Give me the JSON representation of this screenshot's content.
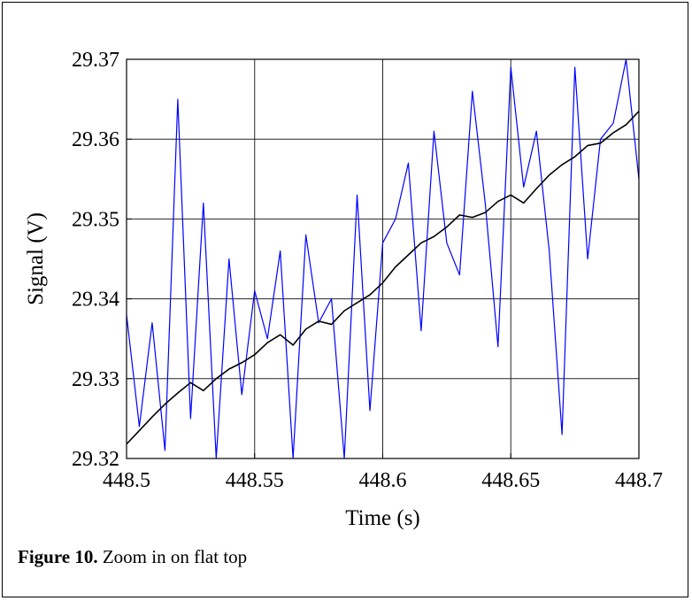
{
  "caption": {
    "label": "Figure 10.",
    "text": " Zoom in on flat top"
  },
  "chart_data": {
    "type": "line",
    "xlabel": "Time (s)",
    "ylabel": "Signal (V)",
    "xlim": [
      448.5,
      448.7
    ],
    "ylim": [
      29.32,
      29.37
    ],
    "grid": true,
    "xticks": [
      448.5,
      448.55,
      448.6,
      448.65,
      448.7
    ],
    "xtick_labels": [
      "448.5",
      "448.55",
      "448.6",
      "448.65",
      "448.7"
    ],
    "yticks": [
      29.32,
      29.33,
      29.34,
      29.35,
      29.36,
      29.37
    ],
    "ytick_labels": [
      "29.32",
      "29.33",
      "29.34",
      "29.35",
      "29.36",
      "29.37"
    ],
    "series": [
      {
        "color": "#0000ff",
        "x": [
          448.5,
          448.505,
          448.51,
          448.515,
          448.52,
          448.525,
          448.53,
          448.535,
          448.54,
          448.545,
          448.55,
          448.555,
          448.56,
          448.565,
          448.57,
          448.575,
          448.58,
          448.585,
          448.59,
          448.595,
          448.6,
          448.605,
          448.61,
          448.615,
          448.62,
          448.625,
          448.63,
          448.635,
          448.64,
          448.645,
          448.65,
          448.655,
          448.66,
          448.665,
          448.67,
          448.675,
          448.68,
          448.685,
          448.69,
          448.695,
          448.7
        ],
        "y": [
          29.338,
          29.324,
          29.337,
          29.321,
          29.365,
          29.325,
          29.352,
          29.32,
          29.345,
          29.328,
          29.341,
          29.335,
          29.346,
          29.32,
          29.348,
          29.337,
          29.34,
          29.32,
          29.353,
          29.326,
          29.347,
          29.35,
          29.357,
          29.336,
          29.361,
          29.347,
          29.343,
          29.366,
          29.352,
          29.334,
          29.369,
          29.354,
          29.361,
          29.346,
          29.323,
          29.369,
          29.345,
          29.36,
          29.362,
          29.37,
          29.355
        ]
      },
      {
        "color": "#000000",
        "x": [
          448.5,
          448.505,
          448.51,
          448.515,
          448.52,
          448.525,
          448.53,
          448.535,
          448.54,
          448.545,
          448.55,
          448.555,
          448.56,
          448.565,
          448.57,
          448.575,
          448.58,
          448.585,
          448.59,
          448.595,
          448.6,
          448.605,
          448.61,
          448.615,
          448.62,
          448.625,
          448.63,
          448.635,
          448.64,
          448.645,
          448.65,
          448.655,
          448.66,
          448.665,
          448.67,
          448.675,
          448.68,
          448.685,
          448.69,
          448.695,
          448.7
        ],
        "y": [
          29.3218,
          29.3235,
          29.3252,
          29.3268,
          29.3282,
          29.3295,
          29.3285,
          29.33,
          29.3312,
          29.332,
          29.333,
          29.3345,
          29.3355,
          29.3342,
          29.3362,
          29.3372,
          29.3368,
          29.3385,
          29.3395,
          29.3405,
          29.342,
          29.344,
          29.3455,
          29.347,
          29.3478,
          29.349,
          29.3505,
          29.3502,
          29.3508,
          29.3522,
          29.353,
          29.352,
          29.3538,
          29.3555,
          29.3568,
          29.3578,
          29.3592,
          29.3595,
          29.3608,
          29.3618,
          29.3635
        ]
      }
    ]
  }
}
